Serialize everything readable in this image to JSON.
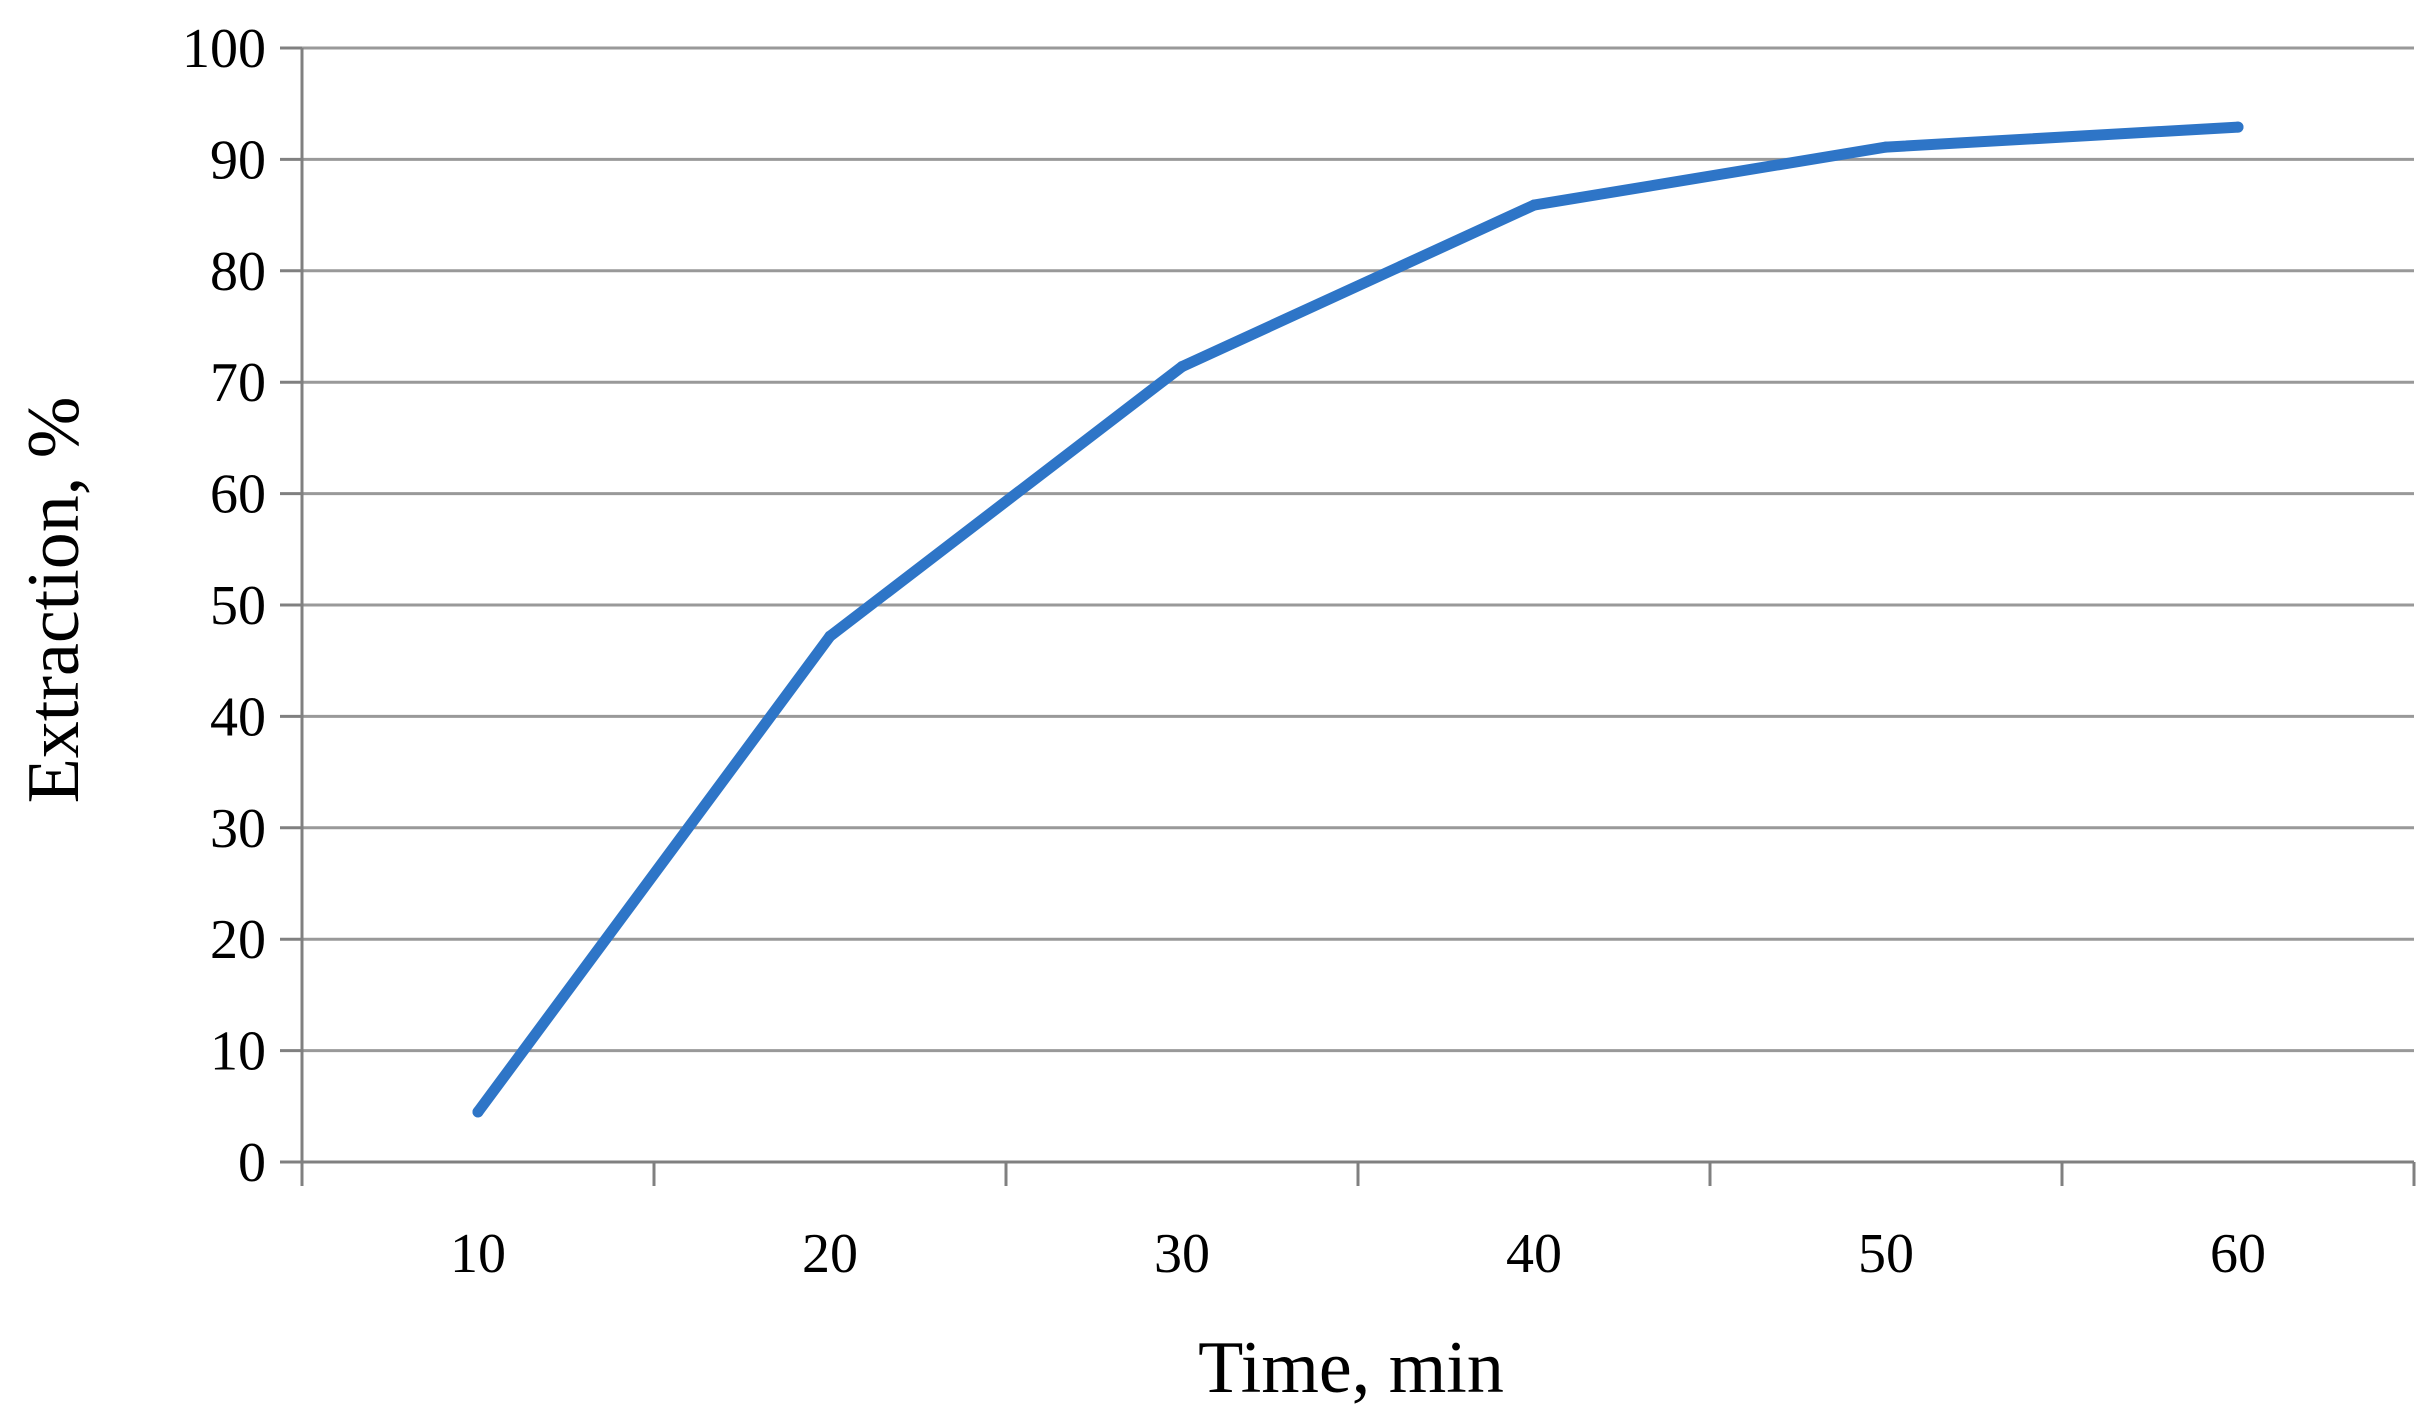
{
  "chart_data": {
    "type": "line",
    "title": "",
    "xlabel": "Time, min",
    "ylabel": "Extraction, %",
    "categories": [
      "10",
      "20",
      "30",
      "40",
      "50",
      "60"
    ],
    "series": [
      {
        "values": [
          4.5,
          47.2,
          71.4,
          85.9,
          91.1,
          92.9
        ]
      }
    ],
    "ylim": [
      0,
      100
    ],
    "yticks": [
      0,
      10,
      20,
      30,
      40,
      50,
      60,
      70,
      80,
      90,
      100
    ],
    "grid": "horizontal",
    "legend": "none",
    "colors": {
      "line": "#2E75C7",
      "grid": "#999999",
      "axis": "#808080"
    }
  }
}
